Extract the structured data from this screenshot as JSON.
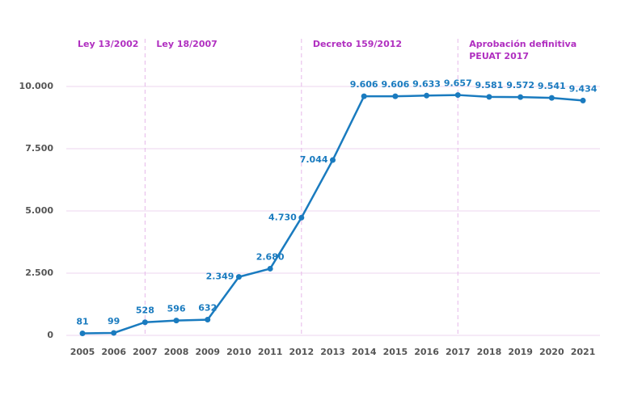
{
  "chart_data": {
    "type": "line",
    "categories": [
      "2005",
      "2006",
      "2007",
      "2008",
      "2009",
      "2010",
      "2011",
      "2012",
      "2013",
      "2014",
      "2015",
      "2016",
      "2017",
      "2018",
      "2019",
      "2020",
      "2021"
    ],
    "values": [
      81,
      99,
      528,
      596,
      632,
      2349,
      2680,
      4730,
      7044,
      9606,
      9606,
      9633,
      9657,
      9581,
      9572,
      9541,
      9434
    ],
    "value_labels": [
      "81",
      "99",
      "528",
      "596",
      "632",
      "2.349",
      "2.680",
      "4.730",
      "7.044",
      "9.606",
      "9.606",
      "9.633",
      "9.657",
      "9.581",
      "9.572",
      "9.541",
      "9.434"
    ],
    "color": "#1a7bbf",
    "ylim": [
      0,
      10000
    ],
    "yticks": [
      {
        "value": 0,
        "label": "0"
      },
      {
        "value": 2500,
        "label": "2.500"
      },
      {
        "value": 5000,
        "label": "5.000"
      },
      {
        "value": 7500,
        "label": "7.500"
      },
      {
        "value": 10000,
        "label": "10.000"
      }
    ],
    "grid": true,
    "annotations": [
      {
        "lines": [
          "Ley 13/2002"
        ]
      },
      {
        "lines": [
          "Ley 18/2007"
        ],
        "x": "2007"
      },
      {
        "lines": [
          "Decreto 159/2012"
        ],
        "x": "2012"
      },
      {
        "lines": [
          "Aprobación definitiva",
          "PEUAT 2017"
        ],
        "x": "2017"
      }
    ]
  }
}
